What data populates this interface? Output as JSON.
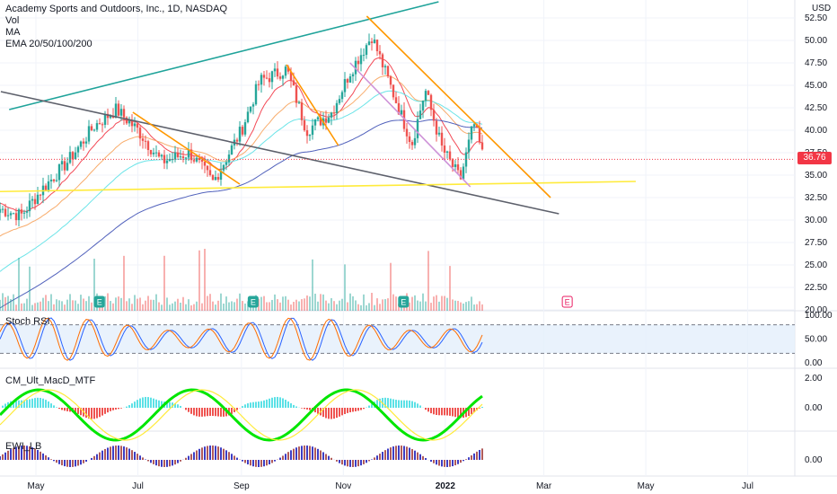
{
  "header": {
    "title": "Academy Sports and Outdoors, Inc., 1D, NASDAQ",
    "indicators": [
      "Vol",
      "MA",
      "EMA 20/50/100/200"
    ],
    "currency": "USD"
  },
  "last_price": "36.76",
  "panes": {
    "stoch": {
      "label": "Stoch RSI",
      "ticks": [
        "100.00",
        "50.00",
        "0.00"
      ],
      "levels": [
        80,
        20
      ]
    },
    "macd": {
      "label": "CM_Ult_MacD_MTF",
      "ticks": [
        "2.00",
        "0.00"
      ]
    },
    "ewi": {
      "label": "EWI_LB",
      "ticks": [
        "0.00"
      ]
    }
  },
  "earnings_marker": "E",
  "chart_data": {
    "type": "candlestick",
    "title": "Academy Sports and Outdoors, Inc., 1D, NASDAQ",
    "y_ticks": [
      "52.50",
      "50.00",
      "47.50",
      "45.00",
      "42.50",
      "40.00",
      "37.50",
      "35.00",
      "32.50",
      "30.00",
      "27.50",
      "25.00",
      "22.50",
      "20.00"
    ],
    "ylim": [
      20,
      53
    ],
    "x_ticks": [
      {
        "label": "May",
        "date": "2021-05-01"
      },
      {
        "label": "Jul",
        "date": "2021-07-01"
      },
      {
        "label": "Sep",
        "date": "2021-09-01"
      },
      {
        "label": "Nov",
        "date": "2021-11-01"
      },
      {
        "label": "2022",
        "date": "2022-01-01",
        "bold": true
      },
      {
        "label": "Mar",
        "date": "2022-03-01"
      },
      {
        "label": "May",
        "date": "2022-05-01"
      },
      {
        "label": "Jul",
        "date": "2022-07-01"
      }
    ],
    "price_path": [
      [
        "2021-04-05",
        31.5
      ],
      [
        "2021-04-22",
        30.5
      ],
      [
        "2021-05-05",
        33.5
      ],
      [
        "2021-05-20",
        36.5
      ],
      [
        "2021-06-05",
        40.5
      ],
      [
        "2021-06-18",
        42.3
      ],
      [
        "2021-07-01",
        40.0
      ],
      [
        "2021-07-15",
        36.5
      ],
      [
        "2021-08-01",
        37.5
      ],
      [
        "2021-08-15",
        34.2
      ],
      [
        "2021-09-01",
        40.0
      ],
      [
        "2021-09-12",
        45.5
      ],
      [
        "2021-09-28",
        46.8
      ],
      [
        "2021-10-10",
        40.0
      ],
      [
        "2021-10-25",
        42.0
      ],
      [
        "2021-11-05",
        46.5
      ],
      [
        "2021-11-18",
        50.5
      ],
      [
        "2021-12-01",
        44.0
      ],
      [
        "2021-12-12",
        38.5
      ],
      [
        "2021-12-20",
        44.5
      ],
      [
        "2021-12-30",
        38.0
      ],
      [
        "2022-01-10",
        34.5
      ],
      [
        "2022-01-18",
        40.8
      ],
      [
        "2022-01-24",
        36.76
      ]
    ],
    "earnings_dates": [
      "2021-06-08",
      "2021-09-08",
      "2021-12-07",
      "2022-03-15"
    ],
    "annotations": {
      "teal_upper": [
        [
          "2021-04-15",
          42.3
        ],
        [
          "2021-12-28",
          54.3
        ]
      ],
      "gray_lower": [
        [
          "2021-04-10",
          44.3
        ],
        [
          "2022-03-10",
          30.7
        ]
      ],
      "yellow_horizontal": [
        [
          "2021-03-15",
          33.1
        ],
        [
          "2022-04-25",
          34.3
        ]
      ],
      "orange_upper": [
        [
          "2021-11-15",
          52.7
        ],
        [
          "2022-03-05",
          32.5
        ]
      ],
      "violet_diagonal": [
        [
          "2021-11-05",
          47.5
        ],
        [
          "2022-01-16",
          33.7
        ]
      ],
      "orange_small_1": [
        [
          "2021-06-28",
          42.0
        ],
        [
          "2021-08-31",
          34.0
        ]
      ],
      "orange_small_2": [
        [
          "2021-09-28",
          47.3
        ],
        [
          "2021-10-29",
          38.3
        ]
      ]
    },
    "grid": true
  },
  "colors": {
    "up": "#26a69a",
    "down": "#ef5350",
    "ma20": "#f23645",
    "ma50": "#f7a35c",
    "ma100": "#5ce1e6",
    "ma200": "#3f51b5",
    "grid": "#f0f3fa"
  }
}
